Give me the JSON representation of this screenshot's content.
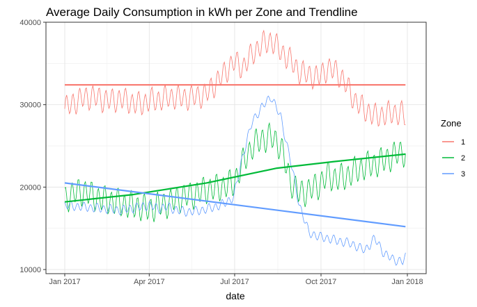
{
  "chart_data": {
    "type": "line",
    "title": "Average Daily Consumption in kWh per Zone and Trendline",
    "xlabel": "date",
    "ylabel": "",
    "x_range": [
      "2017-01-01",
      "2018-01-01"
    ],
    "ylim": [
      9500,
      40000
    ],
    "x_ticks": [
      {
        "date": "2017-01-01",
        "label": "Jan 2017"
      },
      {
        "date": "2017-04-01",
        "label": "Apr 2017"
      },
      {
        "date": "2017-07-01",
        "label": "Jul 2017"
      },
      {
        "date": "2017-10-01",
        "label": "Oct 2017"
      },
      {
        "date": "2018-01-01",
        "label": "Jan 2018"
      }
    ],
    "y_ticks": [
      {
        "value": 10000,
        "label": "10000"
      },
      {
        "value": 20000,
        "label": "20000"
      },
      {
        "value": 30000,
        "label": "30000"
      },
      {
        "value": 40000,
        "label": "40000"
      }
    ],
    "grid": true,
    "legend": {
      "title": "Zone",
      "position": "right"
    },
    "series": [
      {
        "name": "1",
        "color": "#F8766D",
        "x": [
          "2017-01-01",
          "2017-01-11",
          "2017-01-21",
          "2017-01-31",
          "2017-02-10",
          "2017-02-20",
          "2017-03-02",
          "2017-03-12",
          "2017-03-22",
          "2017-04-01",
          "2017-04-11",
          "2017-04-21",
          "2017-05-01",
          "2017-05-11",
          "2017-05-21",
          "2017-05-31",
          "2017-06-10",
          "2017-06-20",
          "2017-06-30",
          "2017-07-10",
          "2017-07-20",
          "2017-07-30",
          "2017-08-09",
          "2017-08-19",
          "2017-08-29",
          "2017-09-08",
          "2017-09-18",
          "2017-09-28",
          "2017-10-08",
          "2017-10-18",
          "2017-10-28",
          "2017-11-07",
          "2017-11-17",
          "2017-11-27",
          "2017-12-07",
          "2017-12-17",
          "2017-12-27",
          "2017-12-30"
        ],
        "values": [
          29500,
          30300,
          30800,
          31000,
          30600,
          30500,
          30700,
          30300,
          30000,
          30500,
          30600,
          30900,
          30900,
          30800,
          31000,
          31200,
          32500,
          33800,
          35200,
          34500,
          36200,
          37300,
          37800,
          36500,
          35400,
          34000,
          33600,
          33300,
          34400,
          34000,
          32400,
          30300,
          29400,
          28600,
          28800,
          29000,
          28900,
          28500
        ]
      },
      {
        "name": "2",
        "color": "#00BA38",
        "x": [
          "2017-01-01",
          "2017-01-11",
          "2017-01-21",
          "2017-01-31",
          "2017-02-10",
          "2017-02-20",
          "2017-03-02",
          "2017-03-12",
          "2017-03-22",
          "2017-04-01",
          "2017-04-11",
          "2017-04-21",
          "2017-05-01",
          "2017-05-11",
          "2017-05-21",
          "2017-05-31",
          "2017-06-10",
          "2017-06-20",
          "2017-06-30",
          "2017-07-10",
          "2017-07-20",
          "2017-07-30",
          "2017-08-09",
          "2017-08-19",
          "2017-08-29",
          "2017-09-08",
          "2017-09-18",
          "2017-09-28",
          "2017-10-08",
          "2017-10-18",
          "2017-10-28",
          "2017-11-07",
          "2017-11-17",
          "2017-11-27",
          "2017-12-07",
          "2017-12-17",
          "2017-12-27",
          "2017-12-30"
        ],
        "values": [
          18500,
          19300,
          19500,
          18900,
          18500,
          18300,
          18000,
          17800,
          17600,
          17300,
          17800,
          18000,
          18600,
          18900,
          19200,
          19700,
          19800,
          20100,
          20500,
          23000,
          25000,
          25800,
          26100,
          25000,
          20800,
          19200,
          19600,
          20200,
          21400,
          21000,
          21300,
          22000,
          22500,
          22800,
          23200,
          23800,
          24300,
          24100
        ]
      },
      {
        "name": "3",
        "color": "#619CFF",
        "x": [
          "2017-01-01",
          "2017-01-11",
          "2017-01-21",
          "2017-01-31",
          "2017-02-10",
          "2017-02-20",
          "2017-03-02",
          "2017-03-12",
          "2017-03-22",
          "2017-04-01",
          "2017-04-11",
          "2017-04-21",
          "2017-05-01",
          "2017-05-11",
          "2017-05-21",
          "2017-05-31",
          "2017-06-10",
          "2017-06-20",
          "2017-06-30",
          "2017-07-10",
          "2017-07-20",
          "2017-07-30",
          "2017-08-09",
          "2017-08-19",
          "2017-08-29",
          "2017-09-08",
          "2017-09-18",
          "2017-09-28",
          "2017-10-08",
          "2017-10-18",
          "2017-10-28",
          "2017-11-07",
          "2017-11-17",
          "2017-11-27",
          "2017-12-07",
          "2017-12-17",
          "2017-12-27",
          "2017-12-30"
        ],
        "values": [
          17800,
          17700,
          17600,
          17500,
          17400,
          17300,
          17200,
          17400,
          17600,
          17800,
          17400,
          17600,
          17200,
          17000,
          17100,
          17300,
          17600,
          18000,
          18800,
          24000,
          28000,
          29700,
          31000,
          28500,
          23500,
          17800,
          14500,
          14000,
          13800,
          13500,
          13300,
          12900,
          12300,
          13800,
          12000,
          11200,
          11000,
          11500
        ]
      }
    ],
    "trendlines": [
      {
        "zone": "1",
        "color": "#F8766D",
        "x": [
          "2017-01-01",
          "2017-12-30"
        ],
        "values": [
          32400,
          32400
        ]
      },
      {
        "zone": "2",
        "color": "#00BA38",
        "x": [
          "2017-01-01",
          "2017-03-15",
          "2017-06-01",
          "2017-08-15",
          "2017-10-15",
          "2017-12-30"
        ],
        "values": [
          18200,
          19100,
          20500,
          22300,
          23100,
          24000
        ]
      },
      {
        "zone": "3",
        "color": "#619CFF",
        "x": [
          "2017-01-01",
          "2017-12-30"
        ],
        "values": [
          20500,
          15200
        ]
      }
    ]
  }
}
